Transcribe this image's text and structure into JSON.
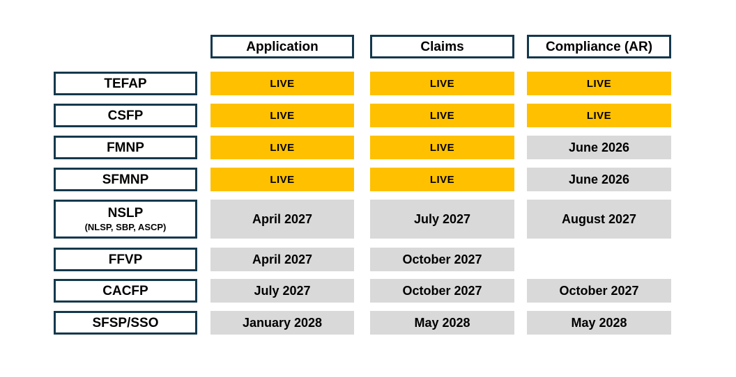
{
  "colors": {
    "live_bg": "#FFC000",
    "date_bg": "#D9D9D9",
    "box_border": "#14384C",
    "page_bg": "#FFFFFF",
    "text": "#000000"
  },
  "chart_data": {
    "type": "table",
    "columns": [
      "Application",
      "Claims",
      "Compliance (AR)"
    ],
    "rows": [
      {
        "label": "TEFAP",
        "sublabel": "",
        "cells": [
          {
            "status": "live",
            "text": "LIVE"
          },
          {
            "status": "live",
            "text": "LIVE"
          },
          {
            "status": "live",
            "text": "LIVE"
          }
        ]
      },
      {
        "label": "CSFP",
        "sublabel": "",
        "cells": [
          {
            "status": "live",
            "text": "LIVE"
          },
          {
            "status": "live",
            "text": "LIVE"
          },
          {
            "status": "live",
            "text": "LIVE"
          }
        ]
      },
      {
        "label": "FMNP",
        "sublabel": "",
        "cells": [
          {
            "status": "live",
            "text": "LIVE"
          },
          {
            "status": "live",
            "text": "LIVE"
          },
          {
            "status": "date",
            "text": "June 2026"
          }
        ]
      },
      {
        "label": "SFMNP",
        "sublabel": "",
        "cells": [
          {
            "status": "live",
            "text": "LIVE"
          },
          {
            "status": "live",
            "text": "LIVE"
          },
          {
            "status": "date",
            "text": "June 2026"
          }
        ]
      },
      {
        "label": "NSLP",
        "sublabel": "(NLSP, SBP, ASCP)",
        "cells": [
          {
            "status": "date",
            "text": "April 2027"
          },
          {
            "status": "date",
            "text": "July 2027"
          },
          {
            "status": "date",
            "text": "August 2027"
          }
        ]
      },
      {
        "label": "FFVP",
        "sublabel": "",
        "cells": [
          {
            "status": "date",
            "text": "April 2027"
          },
          {
            "status": "date",
            "text": "October 2027"
          },
          {
            "status": "empty",
            "text": ""
          }
        ]
      },
      {
        "label": "CACFP",
        "sublabel": "",
        "cells": [
          {
            "status": "date",
            "text": "July 2027"
          },
          {
            "status": "date",
            "text": "October 2027"
          },
          {
            "status": "date",
            "text": "October 2027"
          }
        ]
      },
      {
        "label": "SFSP/SSO",
        "sublabel": "",
        "cells": [
          {
            "status": "date",
            "text": "January 2028"
          },
          {
            "status": "date",
            "text": "May 2028"
          },
          {
            "status": "date",
            "text": "May 2028"
          }
        ]
      }
    ]
  }
}
